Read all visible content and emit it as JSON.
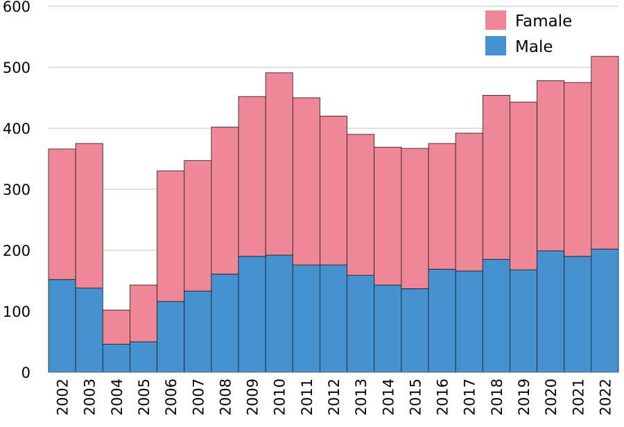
{
  "chart_data": {
    "type": "bar",
    "stacked": true,
    "title": "",
    "xlabel": "",
    "ylabel": "",
    "ylim": [
      0,
      600
    ],
    "yticks": [
      0,
      100,
      200,
      300,
      400,
      500,
      600
    ],
    "grid": true,
    "legend_position": "top-right",
    "categories": [
      "2002",
      "2003",
      "2004",
      "2005",
      "2006",
      "2007",
      "2008",
      "2009",
      "2010",
      "2011",
      "2012",
      "2013",
      "2014",
      "2015",
      "2016",
      "2017",
      "2018",
      "2019",
      "2020",
      "2021",
      "2022"
    ],
    "series": [
      {
        "name": "Male",
        "color": "#4592d0",
        "values": [
          152,
          138,
          46,
          50,
          116,
          133,
          161,
          190,
          192,
          176,
          176,
          159,
          143,
          137,
          169,
          166,
          185,
          168,
          199,
          190,
          202
        ]
      },
      {
        "name": "Famale",
        "color": "#ef8896",
        "values": [
          214,
          237,
          56,
          93,
          214,
          214,
          241,
          262,
          299,
          274,
          244,
          231,
          226,
          230,
          206,
          226,
          269,
          275,
          279,
          285,
          316
        ]
      }
    ],
    "legend": [
      "Famale",
      "Male"
    ]
  }
}
